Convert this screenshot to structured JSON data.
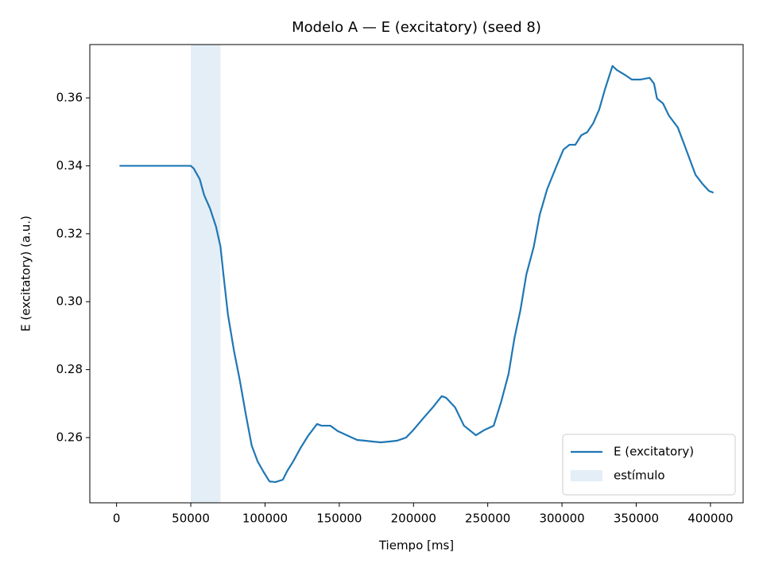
{
  "chart_data": {
    "type": "line",
    "title": "Modelo A — E (excitatory) (seed 8)",
    "xlabel": "Tiempo [ms]",
    "ylabel": "E (excitatory) (a.u.)",
    "x": [
      2000,
      50000,
      52000,
      56000,
      59000,
      63000,
      67000,
      70000,
      72000,
      75000,
      79000,
      83000,
      87000,
      91000,
      95000,
      99000,
      103000,
      107000,
      112000,
      115000,
      119000,
      124000,
      129000,
      135000,
      138000,
      144000,
      149000,
      155000,
      162000,
      167000,
      173000,
      178000,
      183000,
      189000,
      195000,
      200000,
      207000,
      213000,
      219000,
      222000,
      228000,
      234000,
      242000,
      248000,
      254000,
      259000,
      264000,
      268000,
      272000,
      276000,
      281000,
      285000,
      290000,
      296000,
      301000,
      305000,
      309000,
      313000,
      317000,
      321000,
      325000,
      329000,
      334000,
      337000,
      343000,
      347000,
      353000,
      359000,
      362000,
      364000,
      368000,
      372000,
      378000,
      382000,
      387000,
      390000,
      395000,
      399000,
      402000
    ],
    "series": [
      {
        "name": "E (excitatory)",
        "color": "#1f77b4",
        "values": [
          0.34,
          0.34,
          0.3392,
          0.3361,
          0.3314,
          0.3274,
          0.3221,
          0.3162,
          0.308,
          0.2963,
          0.2858,
          0.2769,
          0.267,
          0.2577,
          0.253,
          0.2499,
          0.2471,
          0.2469,
          0.2476,
          0.2502,
          0.253,
          0.257,
          0.2605,
          0.264,
          0.2635,
          0.2635,
          0.2619,
          0.2607,
          0.2593,
          0.2591,
          0.2588,
          0.2586,
          0.2588,
          0.2591,
          0.26,
          0.2623,
          0.2659,
          0.2689,
          0.2722,
          0.2717,
          0.2689,
          0.2635,
          0.2607,
          0.2623,
          0.2635,
          0.2705,
          0.2787,
          0.2893,
          0.2975,
          0.308,
          0.3162,
          0.3256,
          0.3331,
          0.3396,
          0.3448,
          0.3462,
          0.3462,
          0.349,
          0.3499,
          0.3525,
          0.3565,
          0.3626,
          0.3694,
          0.3682,
          0.3666,
          0.3654,
          0.3654,
          0.3659,
          0.3642,
          0.3598,
          0.3584,
          0.3548,
          0.3513,
          0.3467,
          0.3408,
          0.3373,
          0.3345,
          0.3326,
          0.3321
        ]
      }
    ],
    "span": {
      "name": "estímulo",
      "start": 50000,
      "end": 70000,
      "color": "#1f77b4"
    },
    "xlim": [
      -18000,
      422000
    ],
    "ylim": [
      0.2408,
      0.3757
    ],
    "xticks": [
      0,
      50000,
      100000,
      150000,
      200000,
      250000,
      300000,
      350000,
      400000
    ],
    "yticks": [
      0.26,
      0.28,
      {
        "value": 0.3,
        "label": "0.30"
      },
      0.32,
      0.34,
      0.36
    ],
    "legend": "lower right"
  }
}
